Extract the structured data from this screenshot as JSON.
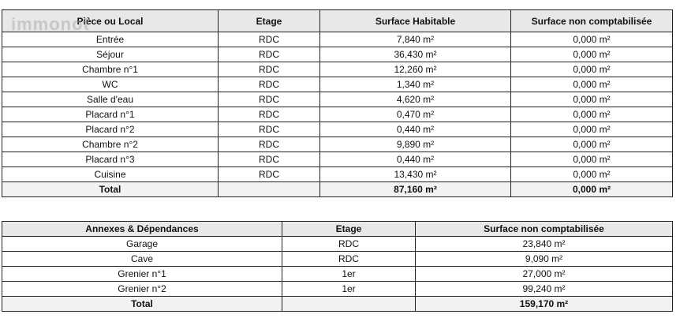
{
  "watermark": "immonot",
  "table1": {
    "header": [
      "Pièce ou Local",
      "Etage",
      "Surface Habitable",
      "Surface non comptabilisée"
    ],
    "rows": [
      [
        "Entrée",
        "RDC",
        "7,840 m²",
        "0,000 m²"
      ],
      [
        "Séjour",
        "RDC",
        "36,430 m²",
        "0,000 m²"
      ],
      [
        "Chambre n°1",
        "RDC",
        "12,260 m²",
        "0,000 m²"
      ],
      [
        "WC",
        "RDC",
        "1,340 m²",
        "0,000 m²"
      ],
      [
        "Salle d'eau",
        "RDC",
        "4,620 m²",
        "0,000 m²"
      ],
      [
        "Placard n°1",
        "RDC",
        "0,470 m²",
        "0,000 m²"
      ],
      [
        "Placard n°2",
        "RDC",
        "0,440 m²",
        "0,000 m²"
      ],
      [
        "Chambre n°2",
        "RDC",
        "9,890 m²",
        "0,000 m²"
      ],
      [
        "Placard n°3",
        "RDC",
        "0,440 m²",
        "0,000 m²"
      ],
      [
        "Cuisine",
        "RDC",
        "13,430 m²",
        "0,000 m²"
      ]
    ],
    "total": {
      "label": "Total",
      "surface": "87,160 m²",
      "non": "0,000 m²"
    }
  },
  "table2": {
    "header": [
      "Annexes & Dépendances",
      "Etage",
      "Surface non comptabilisée"
    ],
    "rows": [
      [
        "Garage",
        "RDC",
        "23,840 m²"
      ],
      [
        "Cave",
        "RDC",
        "9,090 m²"
      ],
      [
        "Grenier n°1",
        "1er",
        "27,000 m²"
      ],
      [
        "Grenier n°2",
        "1er",
        "99,240 m²"
      ]
    ],
    "total": {
      "label": "Total",
      "non": "159,170 m²"
    }
  }
}
